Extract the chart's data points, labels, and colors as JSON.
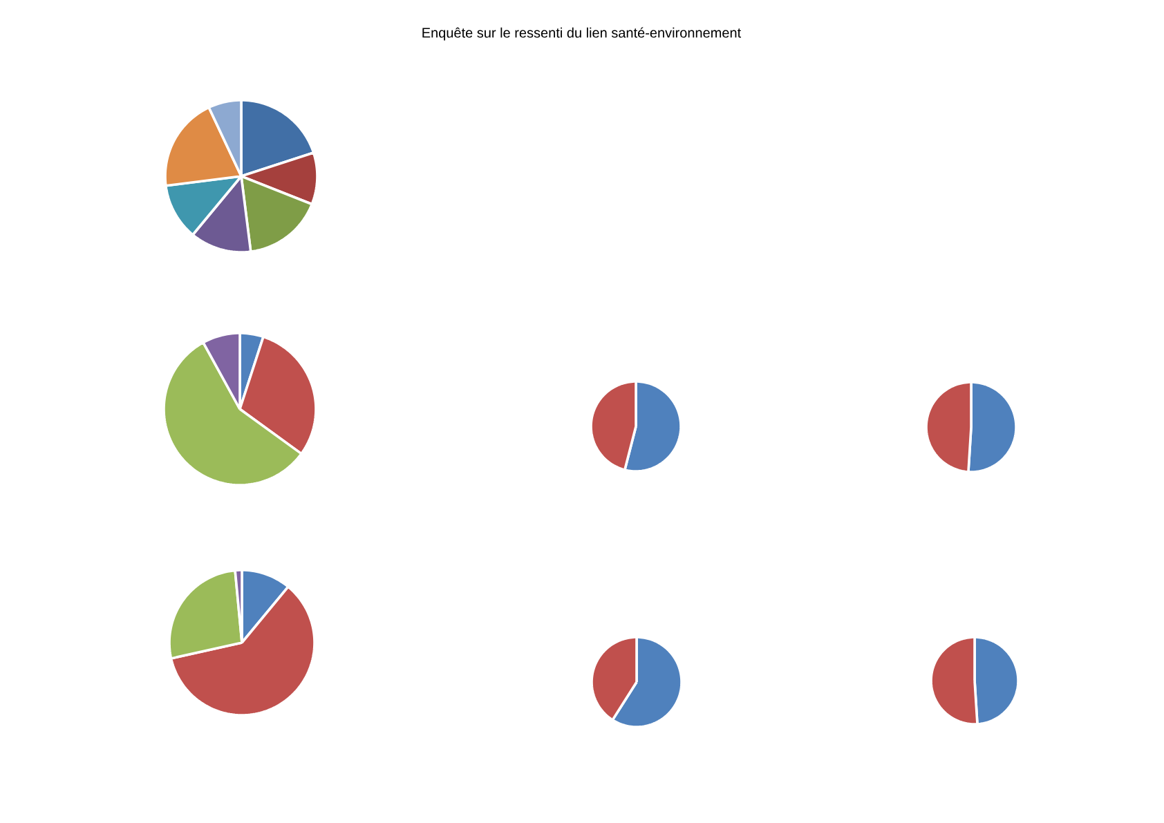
{
  "chart_data": [
    {
      "type": "pie",
      "title": "Enquête sur le ressenti du lien santé-environnement",
      "categories": [
        null,
        null,
        null,
        null,
        null,
        null,
        null
      ],
      "values": [
        20,
        11,
        17,
        13,
        12,
        20,
        7
      ],
      "colors": [
        "#416fa6",
        "#a5403d",
        "#7f9d47",
        "#6d5a93",
        "#3f97ae",
        "#df8b45",
        "#8da9d1"
      ]
    },
    {
      "type": "pie",
      "categories": [
        null,
        null,
        null,
        null
      ],
      "values": [
        5,
        30,
        57,
        8
      ],
      "colors": [
        "#4f81bd",
        "#c0504d",
        "#9bbb59",
        "#8064a2"
      ]
    },
    {
      "type": "pie",
      "categories": [
        null,
        null,
        null,
        null
      ],
      "values": [
        11,
        60.5,
        27,
        1.5
      ],
      "colors": [
        "#4f81bd",
        "#c0504d",
        "#9bbb59",
        "#8064a2"
      ]
    },
    {
      "type": "pie",
      "categories": [
        null,
        null
      ],
      "values": [
        54,
        46
      ],
      "colors": [
        "#4f81bd",
        "#c0504d"
      ]
    },
    {
      "type": "pie",
      "categories": [
        null,
        null
      ],
      "values": [
        51,
        49
      ],
      "colors": [
        "#4f81bd",
        "#c0504d"
      ]
    },
    {
      "type": "pie",
      "categories": [
        null,
        null
      ],
      "values": [
        59,
        41
      ],
      "colors": [
        "#4f81bd",
        "#c0504d"
      ]
    },
    {
      "type": "pie",
      "categories": [
        null,
        null
      ],
      "values": [
        49,
        51
      ],
      "colors": [
        "#4f81bd",
        "#c0504d"
      ]
    }
  ]
}
